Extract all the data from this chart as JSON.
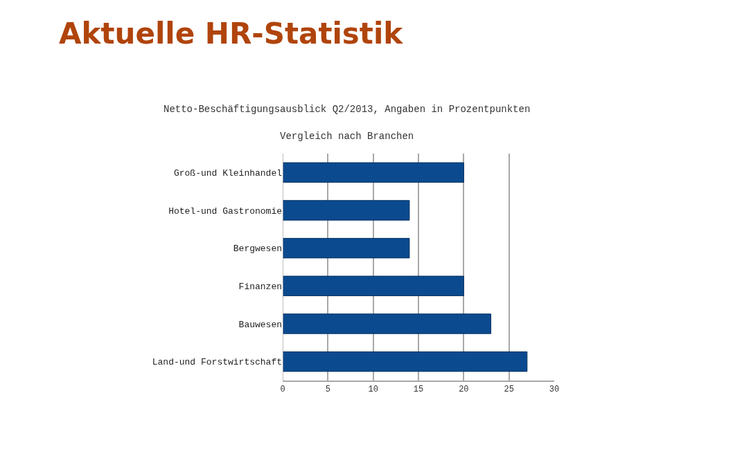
{
  "chart_data": {
    "type": "bar",
    "orientation": "horizontal",
    "title": "Aktuelle HR-Statistik",
    "subtitle": "Netto-Beschäftigungsausblick Q2/2013, Angaben in Prozentpunkten\nVergleich nach Branchen",
    "categories": [
      "Groß-und Kleinhandel",
      "Hotel-und Gastronomie",
      "Bergwesen",
      "Finanzen",
      "Bauwesen",
      "Land-und Forstwirtschaft"
    ],
    "values": [
      20,
      14,
      14,
      20,
      23,
      27
    ],
    "color": "#0b4a8f",
    "xlim": [
      0,
      30
    ],
    "xticks": [
      0,
      5,
      10,
      15,
      20,
      25,
      30
    ],
    "grid": "x"
  }
}
